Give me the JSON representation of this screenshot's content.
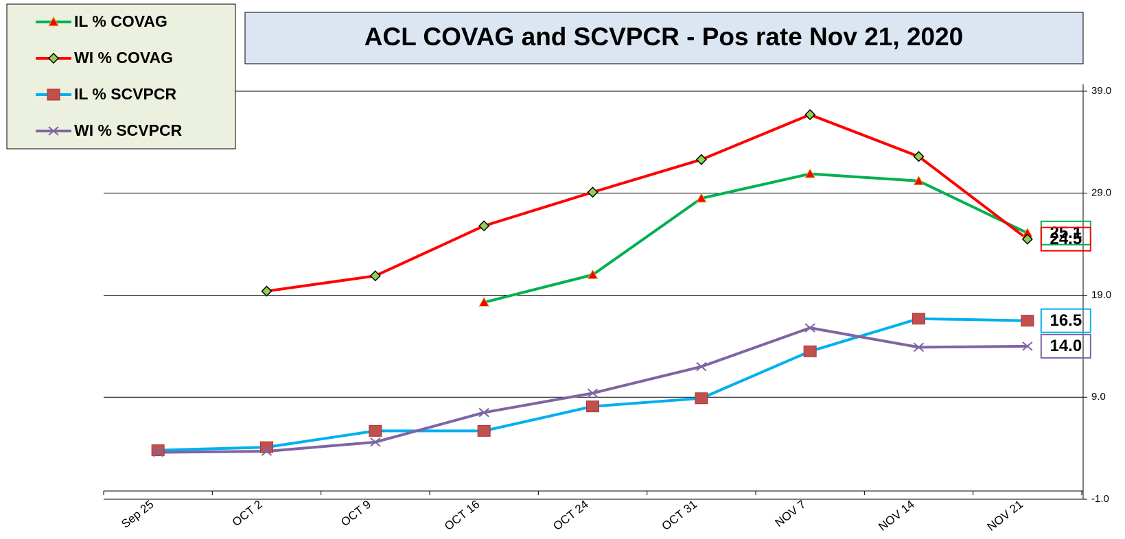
{
  "chart_data": {
    "type": "line",
    "title": "ACL COVAG and SCVPCR -  Pos rate Nov 21, 2020",
    "categories": [
      "Sep 25",
      "OCT 2",
      "OCT 9",
      "OCT 16",
      "OCT 24",
      "OCT 31",
      "NOV 7",
      "NOV 14",
      "NOV 21"
    ],
    "series": [
      {
        "name": "IL % COVAG",
        "color": "#00b050",
        "marker": "triangle",
        "marker_color": "#ff0000",
        "values": [
          null,
          null,
          null,
          18.3,
          21.0,
          28.5,
          30.9,
          30.2,
          25.1
        ],
        "value_labels": [
          null,
          null,
          null,
          null,
          null,
          null,
          null,
          null,
          "25.1"
        ]
      },
      {
        "name": "WI % COVAG",
        "color": "#ff0000",
        "marker": "diamond",
        "marker_color": "#92d050",
        "values": [
          null,
          19.4,
          20.9,
          25.8,
          29.1,
          32.3,
          36.7,
          32.6,
          24.5
        ],
        "value_labels": [
          null,
          null,
          null,
          null,
          null,
          null,
          null,
          null,
          "24.5"
        ]
      },
      {
        "name": "IL % SCVPCR",
        "color": "#00b0f0",
        "marker": "square",
        "marker_color": "#c0504d",
        "values": [
          3.8,
          4.1,
          5.7,
          5.7,
          8.1,
          8.9,
          13.5,
          16.7,
          16.5
        ],
        "value_labels": [
          null,
          null,
          null,
          null,
          null,
          null,
          null,
          null,
          "16.5"
        ]
      },
      {
        "name": "WI % SCVPCR",
        "color": "#8064a2",
        "marker": "x",
        "marker_color": "#8064a2",
        "values": [
          3.6,
          3.7,
          4.6,
          7.5,
          9.4,
          12.0,
          15.8,
          13.9,
          14.0
        ],
        "value_labels": [
          null,
          null,
          null,
          null,
          null,
          null,
          null,
          null,
          "14.0"
        ]
      }
    ],
    "ylim": [
      -1,
      39
    ],
    "yticks": [
      {
        "value": -1,
        "label": "-1.0"
      },
      {
        "value": 9,
        "label": "9.0"
      },
      {
        "value": 19,
        "label": "19.0"
      },
      {
        "value": 29,
        "label": "29.0"
      },
      {
        "value": 39,
        "label": "39.0"
      }
    ],
    "grid": true,
    "y_axis_side": "right",
    "legend": "upper left"
  }
}
